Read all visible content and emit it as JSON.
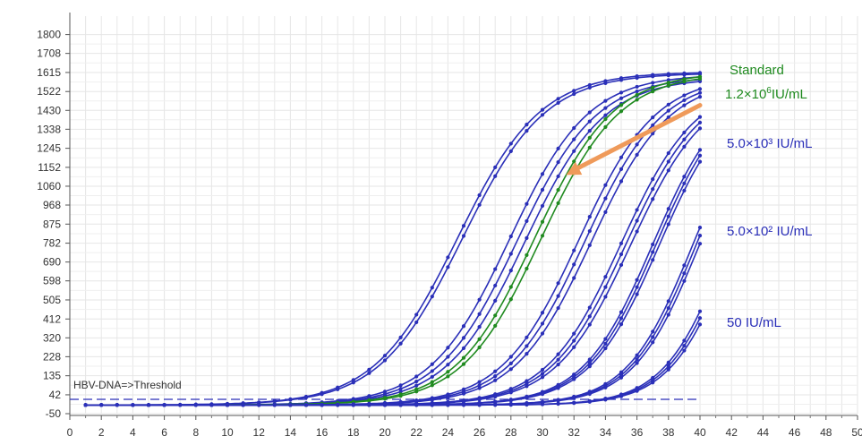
{
  "chart_data": {
    "type": "line",
    "x_ticks": [
      0,
      2,
      4,
      6,
      8,
      10,
      12,
      14,
      16,
      18,
      20,
      22,
      24,
      26,
      28,
      30,
      32,
      34,
      36,
      38,
      40,
      42,
      44,
      46,
      48,
      50
    ],
    "y_ticks": [
      -50,
      42,
      135,
      228,
      320,
      412,
      505,
      598,
      690,
      782,
      875,
      968,
      1060,
      1152,
      1245,
      1338,
      1430,
      1522,
      1615,
      1708,
      1800
    ],
    "xlim": [
      0,
      50
    ],
    "ylim": [
      -50,
      1890
    ],
    "grid": true,
    "threshold": {
      "label": "HBV-DNA=>Threshold",
      "y": 20,
      "color": "#2a2fb8"
    },
    "series": [
      {
        "color": "#2a2fb8",
        "baseline": -8,
        "top": 1618,
        "mid": 24.6,
        "k": 0.38
      },
      {
        "color": "#2a2fb8",
        "baseline": -8,
        "top": 1612,
        "mid": 24.9,
        "k": 0.38
      },
      {
        "color": "#2a2fb8",
        "baseline": -8,
        "top": 1606,
        "mid": 27.9,
        "k": 0.4
      },
      {
        "color": "#2a2fb8",
        "baseline": -8,
        "top": 1596,
        "mid": 28.4,
        "k": 0.4
      },
      {
        "color": "#2a2fb8",
        "baseline": -8,
        "top": 1590,
        "mid": 28.9,
        "k": 0.4
      },
      {
        "color": "#1f8a1f",
        "baseline": -8,
        "top": 1618,
        "mid": 29.5,
        "k": 0.4
      },
      {
        "color": "#1f8a1f",
        "baseline": -8,
        "top": 1612,
        "mid": 29.9,
        "k": 0.4
      },
      {
        "color": "#2a2fb8",
        "baseline": -8,
        "top": 1600,
        "mid": 32.3,
        "k": 0.41
      },
      {
        "color": "#2a2fb8",
        "baseline": -8,
        "top": 1592,
        "mid": 32.7,
        "k": 0.41
      },
      {
        "color": "#2a2fb8",
        "baseline": -8,
        "top": 1585,
        "mid": 33.1,
        "k": 0.41
      },
      {
        "color": "#2a2fb8",
        "baseline": -8,
        "top": 1570,
        "mid": 35.0,
        "k": 0.42
      },
      {
        "color": "#2a2fb8",
        "baseline": -8,
        "top": 1562,
        "mid": 35.3,
        "k": 0.42
      },
      {
        "color": "#2a2fb8",
        "baseline": -8,
        "top": 1555,
        "mid": 35.6,
        "k": 0.42
      },
      {
        "color": "#2a2fb8",
        "baseline": -8,
        "top": 1560,
        "mid": 37.0,
        "k": 0.45
      },
      {
        "color": "#2a2fb8",
        "baseline": -8,
        "top": 1555,
        "mid": 37.2,
        "k": 0.45
      },
      {
        "color": "#2a2fb8",
        "baseline": -8,
        "top": 1548,
        "mid": 37.4,
        "k": 0.45
      },
      {
        "color": "#2a2fb8",
        "baseline": -8,
        "top": 1540,
        "mid": 39.5,
        "k": 0.48
      },
      {
        "color": "#2a2fb8",
        "baseline": -8,
        "top": 1535,
        "mid": 39.7,
        "k": 0.48
      },
      {
        "color": "#2a2fb8",
        "baseline": -8,
        "top": 1530,
        "mid": 39.9,
        "k": 0.48
      },
      {
        "color": "#2a2fb8",
        "baseline": -8,
        "top": 1520,
        "mid": 41.7,
        "k": 0.5
      },
      {
        "color": "#2a2fb8",
        "baseline": -8,
        "top": 1515,
        "mid": 41.9,
        "k": 0.5
      },
      {
        "color": "#2a2fb8",
        "baseline": -8,
        "top": 1510,
        "mid": 42.1,
        "k": 0.5
      }
    ],
    "arrow": {
      "color": "#ef9a5a",
      "from": [
        40,
        1455
      ],
      "to": [
        31.5,
        1115
      ]
    },
    "annotations": {
      "standard": "Standard",
      "std_conc_base": "1.2×10",
      "std_conc_exp": "6",
      "std_conc_unit": "IU/mL",
      "c1": "5.0×10³ IU/mL",
      "c2": "5.0×10² IU/mL",
      "c3": "50 IU/mL"
    }
  }
}
